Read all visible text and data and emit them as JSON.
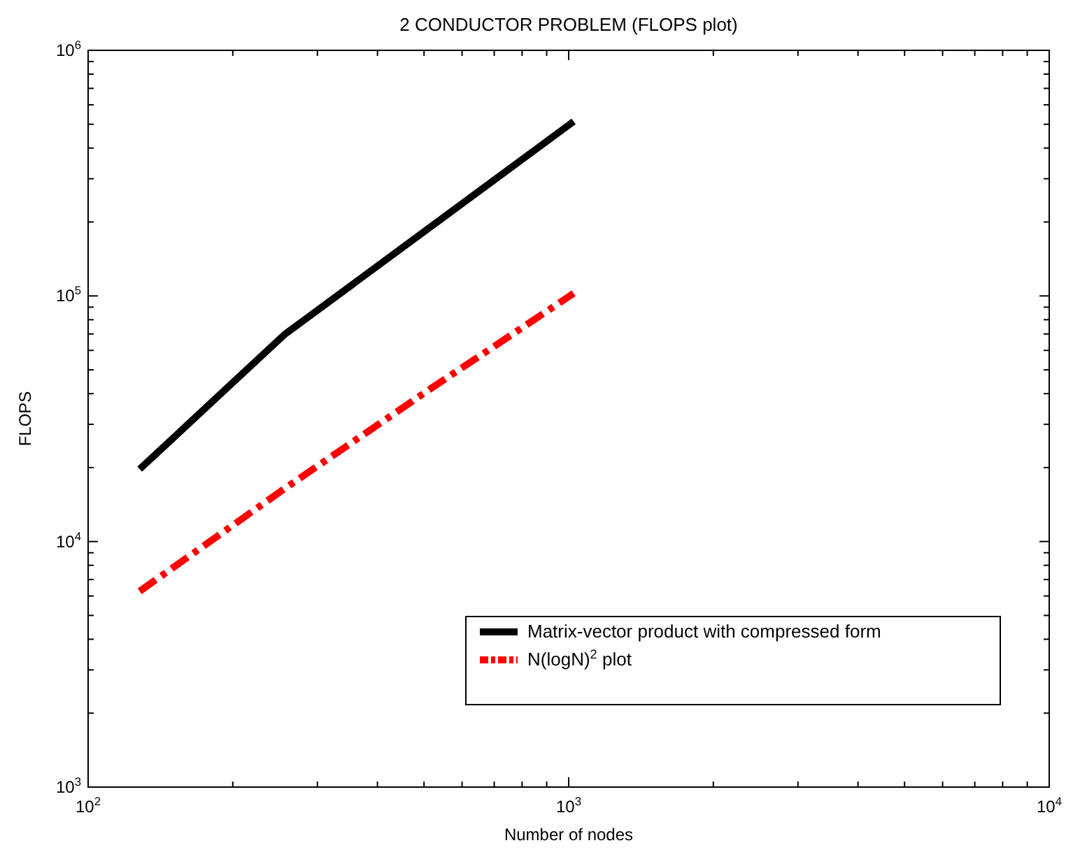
{
  "chart_data": {
    "type": "line",
    "title": "2 CONDUCTOR PROBLEM (FLOPS plot)",
    "xlabel": "Number of nodes",
    "ylabel": "FLOPS",
    "log": "xy",
    "grid": false,
    "legend": "bottom right",
    "marker": "none",
    "xlim": [
      100,
      10000
    ],
    "ylim": [
      1000,
      1000000
    ],
    "xticks": [
      {
        "value": 100,
        "label": "10$^{2}$"
      },
      {
        "value": 200,
        "label": null
      },
      {
        "value": 300,
        "label": null
      },
      {
        "value": 400,
        "label": null
      },
      {
        "value": 500,
        "label": null
      },
      {
        "value": 600,
        "label": null
      },
      {
        "value": 700,
        "label": null
      },
      {
        "value": 800,
        "label": null
      },
      {
        "value": 900,
        "label": null
      },
      {
        "value": 1000,
        "label": "10$^{3}$"
      },
      {
        "value": 2000,
        "label": null
      },
      {
        "value": 3000,
        "label": null
      },
      {
        "value": 4000,
        "label": null
      },
      {
        "value": 5000,
        "label": null
      },
      {
        "value": 6000,
        "label": null
      },
      {
        "value": 7000,
        "label": null
      },
      {
        "value": 8000,
        "label": null
      },
      {
        "value": 9000,
        "label": null
      },
      {
        "value": 10000,
        "label": "10$^{4}$"
      }
    ],
    "yticks": [
      {
        "value": 1000,
        "label": "10$^{3}$"
      },
      {
        "value": 2000,
        "label": null
      },
      {
        "value": 3000,
        "label": null
      },
      {
        "value": 4000,
        "label": null
      },
      {
        "value": 5000,
        "label": null
      },
      {
        "value": 6000,
        "label": null
      },
      {
        "value": 7000,
        "label": null
      },
      {
        "value": 8000,
        "label": null
      },
      {
        "value": 9000,
        "label": null
      },
      {
        "value": 10000,
        "label": "10$^{4}$"
      },
      {
        "value": 20000,
        "label": null
      },
      {
        "value": 30000,
        "label": null
      },
      {
        "value": 40000,
        "label": null
      },
      {
        "value": 50000,
        "label": null
      },
      {
        "value": 60000,
        "label": null
      },
      {
        "value": 70000,
        "label": null
      },
      {
        "value": 80000,
        "label": null
      },
      {
        "value": 90000,
        "label": null
      },
      {
        "value": 100000,
        "label": "10$^{5}$"
      },
      {
        "value": 200000,
        "label": null
      },
      {
        "value": 300000,
        "label": null
      },
      {
        "value": 400000,
        "label": null
      },
      {
        "value": 500000,
        "label": null
      },
      {
        "value": 600000,
        "label": null
      },
      {
        "value": 700000,
        "label": null
      },
      {
        "value": 800000,
        "label": null
      },
      {
        "value": 900000,
        "label": null
      },
      {
        "value": 1000000,
        "label": "10$^{6}$"
      }
    ],
    "x": [
      128,
      256,
      512,
      1024
    ],
    "series": [
      {
        "name": "Matrix-vector product with compressed form",
        "color": "#000000",
        "line_style": "solid",
        "values": [
          19700,
          69500,
          189000,
          513000
        ]
      },
      {
        "name": "N(logN)$^{2}$ plot",
        "color": "#ff0000",
        "line_style": "dashed",
        "values": [
          6272,
          16384,
          41472,
          102400
        ]
      }
    ]
  }
}
